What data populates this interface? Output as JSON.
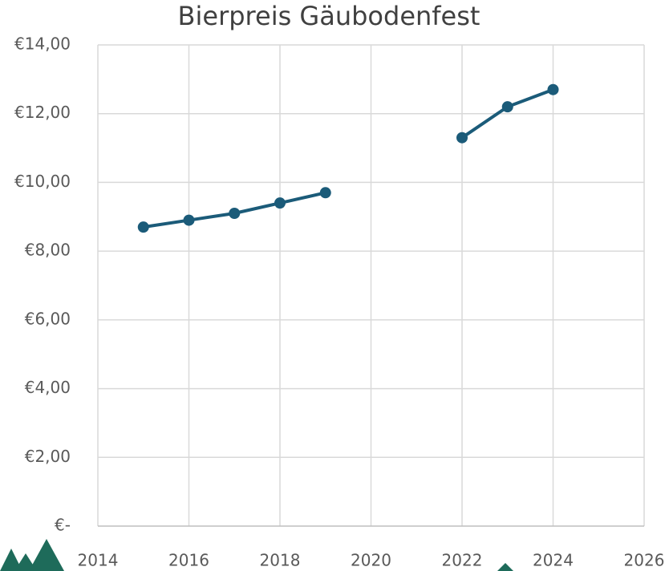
{
  "chart_data": {
    "type": "line",
    "title": "Bierpreis Gäubodenfest",
    "x": [
      2015,
      2016,
      2017,
      2018,
      2019,
      2020,
      2021,
      2022,
      2023,
      2024
    ],
    "series": [
      {
        "color": "#1b5b79",
        "values": [
          8.7,
          8.9,
          9.1,
          9.4,
          9.7,
          null,
          null,
          11.3,
          12.2,
          12.7
        ]
      }
    ],
    "xlim": [
      2014,
      2026
    ],
    "xticks": [
      2014,
      2016,
      2018,
      2020,
      2022,
      2024,
      2026
    ],
    "ylim": [
      0,
      14
    ],
    "yticks": [
      {
        "value": 0,
        "label": "€-"
      },
      {
        "value": 2,
        "label": "€2,00"
      },
      {
        "value": 4,
        "label": "€4,00"
      },
      {
        "value": 6,
        "label": "€6,00"
      },
      {
        "value": 8,
        "label": "€8,00"
      },
      {
        "value": 10,
        "label": "€10,00"
      },
      {
        "value": 12,
        "label": "€12,00"
      },
      {
        "value": 14,
        "label": "€14,00"
      }
    ],
    "grid": true
  }
}
